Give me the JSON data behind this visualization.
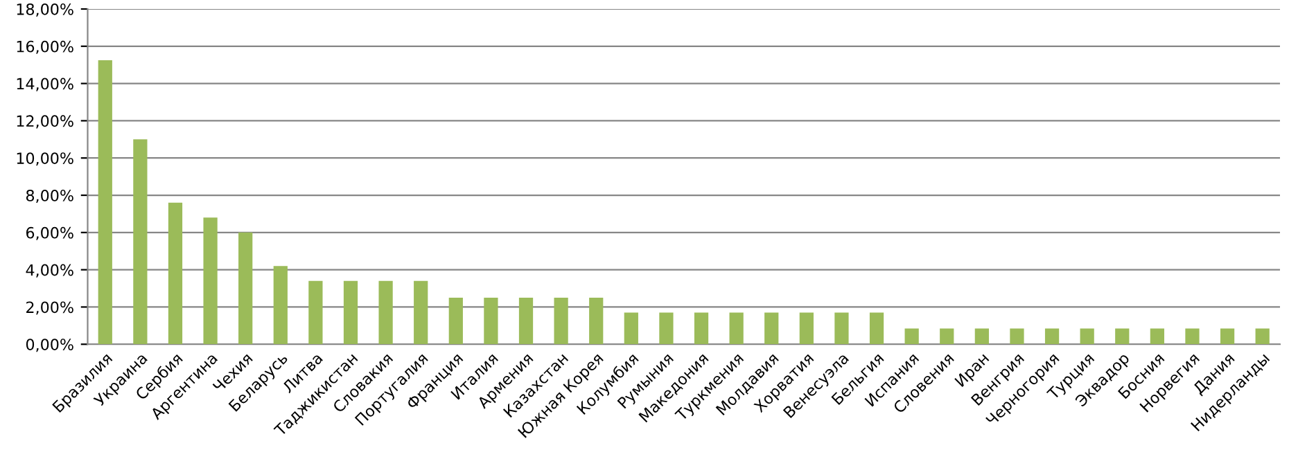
{
  "chart_data": {
    "type": "bar",
    "categories": [
      "Бразилия",
      "Украина",
      "Сербия",
      "Аргентина",
      "Чехия",
      "Беларусь",
      "Литва",
      "Таджикистан",
      "Словакия",
      "Португалия",
      "Франция",
      "Италия",
      "Армения",
      "Казахстан",
      "Южная Корея",
      "Колумбия",
      "Румыния",
      "Македония",
      "Туркмения",
      "Молдавия",
      "Хорватия",
      "Венесуэла",
      "Бельгия",
      "Испания",
      "Словения",
      "Иран",
      "Венгрия",
      "Черногория",
      "Турция",
      "Эквадор",
      "Босния",
      "Норвегия",
      "Дания",
      "Нидерланды"
    ],
    "values": [
      15.25,
      11.0,
      7.6,
      6.8,
      6.0,
      4.2,
      3.4,
      3.4,
      3.4,
      3.4,
      2.5,
      2.5,
      2.5,
      2.5,
      2.5,
      1.7,
      1.7,
      1.7,
      1.7,
      1.7,
      1.7,
      1.7,
      1.7,
      0.85,
      0.85,
      0.85,
      0.85,
      0.85,
      0.85,
      0.85,
      0.85,
      0.85,
      0.85,
      0.85
    ],
    "color": "#9bbb59",
    "ylim": [
      0,
      18
    ],
    "yticks": [
      {
        "value": 0,
        "label": "0,00%"
      },
      {
        "value": 2,
        "label": "2,00%"
      },
      {
        "value": 4,
        "label": "4,00%"
      },
      {
        "value": 6,
        "label": "6,00%"
      },
      {
        "value": 8,
        "label": "8,00%"
      },
      {
        "value": 10,
        "label": "10,00%"
      },
      {
        "value": 12,
        "label": "12,00%"
      },
      {
        "value": 14,
        "label": "14,00%"
      },
      {
        "value": 16,
        "label": "16,00%"
      },
      {
        "value": 18,
        "label": "18,00%"
      }
    ],
    "grid": "y",
    "legend": false
  }
}
